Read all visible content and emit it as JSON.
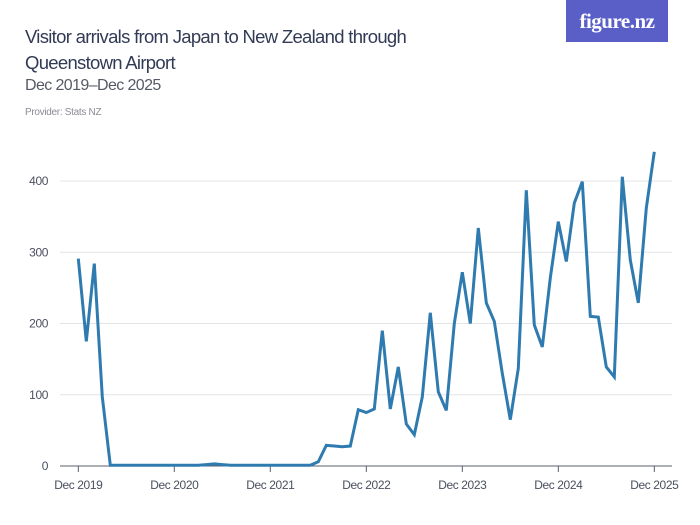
{
  "logo": "figure.nz",
  "chart_data": {
    "type": "line",
    "title": "Visitor arrivals from Japan to New Zealand through Queenstown Airport",
    "subtitle": "Dec 2019–Dec 2025",
    "provider": "Provider: Stats NZ",
    "xlabel": "",
    "ylabel": "",
    "x_start": "Dec 2019",
    "x_end": "Dec 2025",
    "x_ticks": [
      "Dec 2019",
      "Dec 2020",
      "Dec 2021",
      "Dec 2022",
      "Dec 2023",
      "Dec 2024",
      "Dec 2025"
    ],
    "y_ticks": [
      0,
      100,
      200,
      300,
      400
    ],
    "ylim": [
      0,
      440
    ],
    "grid": true,
    "line_color": "#2f7bb0",
    "series": [
      {
        "values": [
          291,
          175,
          284,
          97,
          1,
          1,
          1,
          1,
          1,
          1,
          1,
          1,
          1,
          1,
          1,
          1,
          2,
          3,
          2,
          1,
          1,
          1,
          1,
          1,
          1,
          1,
          1,
          1,
          1,
          1,
          6,
          29,
          28,
          27,
          28,
          79,
          75,
          80,
          190,
          80,
          139,
          59,
          44,
          97,
          215,
          104,
          78,
          200,
          272,
          200,
          334,
          229,
          203,
          130,
          65,
          137,
          387,
          198,
          167,
          264,
          343,
          287,
          369,
          399,
          210,
          209,
          139,
          125,
          406,
          289,
          229,
          362,
          441
        ]
      }
    ]
  }
}
